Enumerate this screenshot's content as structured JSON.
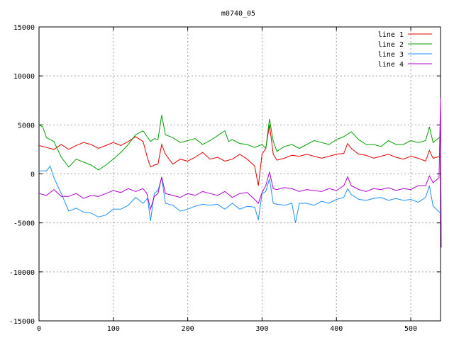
{
  "chart_data": {
    "type": "line",
    "title": "m0740_05",
    "xlabel": "",
    "ylabel": "",
    "xlim": [
      0,
      540
    ],
    "ylim": [
      -15000,
      15000
    ],
    "x_ticks": [
      0,
      100,
      200,
      300,
      400,
      500
    ],
    "y_ticks": [
      -15000,
      -10000,
      -5000,
      0,
      5000,
      10000,
      15000
    ],
    "grid": true,
    "legend_position": "top-right",
    "series": [
      {
        "name": "line 1",
        "color": "#e00000",
        "points": [
          [
            0,
            2900
          ],
          [
            10,
            2700
          ],
          [
            20,
            2500
          ],
          [
            30,
            3000
          ],
          [
            40,
            2500
          ],
          [
            50,
            2900
          ],
          [
            60,
            3200
          ],
          [
            70,
            3000
          ],
          [
            80,
            2600
          ],
          [
            90,
            2900
          ],
          [
            100,
            3200
          ],
          [
            110,
            2900
          ],
          [
            120,
            3300
          ],
          [
            130,
            3800
          ],
          [
            140,
            3300
          ],
          [
            146,
            1600
          ],
          [
            150,
            700
          ],
          [
            155,
            900
          ],
          [
            160,
            1000
          ],
          [
            165,
            3000
          ],
          [
            170,
            2000
          ],
          [
            180,
            1000
          ],
          [
            190,
            1500
          ],
          [
            200,
            1300
          ],
          [
            210,
            1700
          ],
          [
            220,
            2200
          ],
          [
            230,
            1500
          ],
          [
            240,
            1700
          ],
          [
            250,
            1300
          ],
          [
            260,
            1500
          ],
          [
            270,
            2000
          ],
          [
            280,
            1500
          ],
          [
            290,
            800
          ],
          [
            295,
            -1200
          ],
          [
            300,
            2000
          ],
          [
            305,
            2600
          ],
          [
            310,
            5000
          ],
          [
            315,
            2000
          ],
          [
            320,
            1400
          ],
          [
            330,
            1600
          ],
          [
            340,
            1900
          ],
          [
            350,
            1800
          ],
          [
            360,
            2000
          ],
          [
            370,
            1800
          ],
          [
            380,
            1600
          ],
          [
            390,
            1800
          ],
          [
            400,
            2000
          ],
          [
            410,
            2100
          ],
          [
            415,
            3100
          ],
          [
            420,
            2600
          ],
          [
            430,
            2000
          ],
          [
            440,
            1900
          ],
          [
            450,
            1600
          ],
          [
            460,
            1800
          ],
          [
            470,
            2000
          ],
          [
            480,
            1700
          ],
          [
            490,
            1500
          ],
          [
            500,
            1800
          ],
          [
            510,
            1600
          ],
          [
            520,
            1300
          ],
          [
            525,
            2400
          ],
          [
            530,
            1600
          ],
          [
            540,
            1800
          ]
        ]
      },
      {
        "name": "line 2",
        "color": "#00a000",
        "points": [
          [
            0,
            5000
          ],
          [
            5,
            4800
          ],
          [
            10,
            3700
          ],
          [
            20,
            3300
          ],
          [
            30,
            1700
          ],
          [
            40,
            700
          ],
          [
            50,
            1500
          ],
          [
            60,
            1200
          ],
          [
            70,
            900
          ],
          [
            80,
            400
          ],
          [
            90,
            900
          ],
          [
            100,
            1500
          ],
          [
            110,
            2200
          ],
          [
            120,
            3000
          ],
          [
            130,
            4000
          ],
          [
            140,
            4400
          ],
          [
            150,
            3300
          ],
          [
            155,
            3600
          ],
          [
            160,
            3500
          ],
          [
            165,
            6000
          ],
          [
            170,
            4000
          ],
          [
            180,
            3700
          ],
          [
            190,
            3200
          ],
          [
            200,
            3400
          ],
          [
            210,
            3600
          ],
          [
            220,
            3000
          ],
          [
            230,
            3400
          ],
          [
            240,
            3900
          ],
          [
            250,
            4400
          ],
          [
            255,
            3300
          ],
          [
            260,
            3500
          ],
          [
            270,
            3100
          ],
          [
            280,
            3000
          ],
          [
            290,
            2700
          ],
          [
            300,
            3000
          ],
          [
            305,
            2600
          ],
          [
            310,
            5600
          ],
          [
            315,
            3300
          ],
          [
            320,
            2300
          ],
          [
            330,
            2800
          ],
          [
            340,
            3000
          ],
          [
            350,
            2600
          ],
          [
            360,
            3000
          ],
          [
            370,
            3400
          ],
          [
            380,
            3200
          ],
          [
            390,
            3000
          ],
          [
            400,
            3500
          ],
          [
            410,
            3800
          ],
          [
            420,
            4300
          ],
          [
            430,
            3500
          ],
          [
            440,
            3000
          ],
          [
            450,
            3000
          ],
          [
            460,
            2800
          ],
          [
            470,
            3400
          ],
          [
            480,
            3000
          ],
          [
            490,
            3000
          ],
          [
            500,
            3400
          ],
          [
            510,
            3200
          ],
          [
            520,
            3400
          ],
          [
            525,
            4800
          ],
          [
            530,
            3200
          ],
          [
            540,
            3800
          ]
        ]
      },
      {
        "name": "line 3",
        "color": "#1e90ff",
        "points": [
          [
            0,
            300
          ],
          [
            10,
            300
          ],
          [
            15,
            800
          ],
          [
            20,
            -400
          ],
          [
            30,
            -2000
          ],
          [
            40,
            -3800
          ],
          [
            50,
            -3500
          ],
          [
            60,
            -3900
          ],
          [
            70,
            -4000
          ],
          [
            80,
            -4400
          ],
          [
            90,
            -4200
          ],
          [
            100,
            -3600
          ],
          [
            110,
            -3600
          ],
          [
            120,
            -3200
          ],
          [
            130,
            -2400
          ],
          [
            140,
            -3000
          ],
          [
            146,
            -2500
          ],
          [
            150,
            -4800
          ],
          [
            155,
            -2000
          ],
          [
            160,
            -1700
          ],
          [
            165,
            -400
          ],
          [
            170,
            -3000
          ],
          [
            180,
            -3200
          ],
          [
            190,
            -3800
          ],
          [
            200,
            -3600
          ],
          [
            210,
            -3300
          ],
          [
            220,
            -3100
          ],
          [
            230,
            -3200
          ],
          [
            240,
            -3100
          ],
          [
            250,
            -3600
          ],
          [
            260,
            -3000
          ],
          [
            270,
            -3600
          ],
          [
            280,
            -3300
          ],
          [
            290,
            -3400
          ],
          [
            295,
            -4700
          ],
          [
            300,
            -2000
          ],
          [
            305,
            -1800
          ],
          [
            310,
            -500
          ],
          [
            315,
            -3000
          ],
          [
            320,
            -3100
          ],
          [
            330,
            -3200
          ],
          [
            340,
            -3000
          ],
          [
            345,
            -5000
          ],
          [
            350,
            -3000
          ],
          [
            360,
            -3000
          ],
          [
            370,
            -3200
          ],
          [
            380,
            -2800
          ],
          [
            390,
            -3000
          ],
          [
            400,
            -2600
          ],
          [
            410,
            -2400
          ],
          [
            415,
            -1500
          ],
          [
            420,
            -2100
          ],
          [
            430,
            -2600
          ],
          [
            440,
            -2700
          ],
          [
            450,
            -2500
          ],
          [
            460,
            -2400
          ],
          [
            470,
            -2700
          ],
          [
            480,
            -2500
          ],
          [
            490,
            -2700
          ],
          [
            500,
            -2600
          ],
          [
            510,
            -2900
          ],
          [
            520,
            -2400
          ],
          [
            525,
            -1200
          ],
          [
            530,
            -3300
          ],
          [
            540,
            -4000
          ]
        ]
      },
      {
        "name": "line 4",
        "color": "#b000d0",
        "points": [
          [
            0,
            -2000
          ],
          [
            10,
            -2200
          ],
          [
            20,
            -1600
          ],
          [
            30,
            -2300
          ],
          [
            40,
            -2300
          ],
          [
            50,
            -2000
          ],
          [
            60,
            -2500
          ],
          [
            70,
            -2200
          ],
          [
            80,
            -2300
          ],
          [
            90,
            -2000
          ],
          [
            100,
            -1700
          ],
          [
            110,
            -1900
          ],
          [
            120,
            -1500
          ],
          [
            130,
            -1800
          ],
          [
            140,
            -1500
          ],
          [
            145,
            -2000
          ],
          [
            150,
            -3600
          ],
          [
            155,
            -2300
          ],
          [
            160,
            -2000
          ],
          [
            165,
            -300
          ],
          [
            170,
            -2000
          ],
          [
            180,
            -2200
          ],
          [
            190,
            -2400
          ],
          [
            200,
            -2000
          ],
          [
            210,
            -2200
          ],
          [
            220,
            -1800
          ],
          [
            230,
            -2000
          ],
          [
            240,
            -2200
          ],
          [
            250,
            -1800
          ],
          [
            260,
            -2400
          ],
          [
            270,
            -2000
          ],
          [
            280,
            -1900
          ],
          [
            290,
            -2600
          ],
          [
            295,
            -3000
          ],
          [
            300,
            -1900
          ],
          [
            305,
            -1200
          ],
          [
            310,
            200
          ],
          [
            315,
            -1500
          ],
          [
            320,
            -1600
          ],
          [
            330,
            -1400
          ],
          [
            340,
            -1500
          ],
          [
            350,
            -1800
          ],
          [
            360,
            -1600
          ],
          [
            370,
            -1700
          ],
          [
            380,
            -1800
          ],
          [
            390,
            -1500
          ],
          [
            400,
            -1700
          ],
          [
            410,
            -1200
          ],
          [
            415,
            -300
          ],
          [
            420,
            -1200
          ],
          [
            430,
            -1600
          ],
          [
            440,
            -1800
          ],
          [
            450,
            -1500
          ],
          [
            460,
            -1600
          ],
          [
            470,
            -1400
          ],
          [
            480,
            -1700
          ],
          [
            490,
            -1500
          ],
          [
            500,
            -1600
          ],
          [
            510,
            -1200
          ],
          [
            520,
            -1200
          ],
          [
            525,
            -200
          ],
          [
            530,
            -900
          ],
          [
            538,
            -400
          ],
          [
            540,
            7700
          ],
          [
            541,
            -7500
          ]
        ]
      }
    ]
  }
}
